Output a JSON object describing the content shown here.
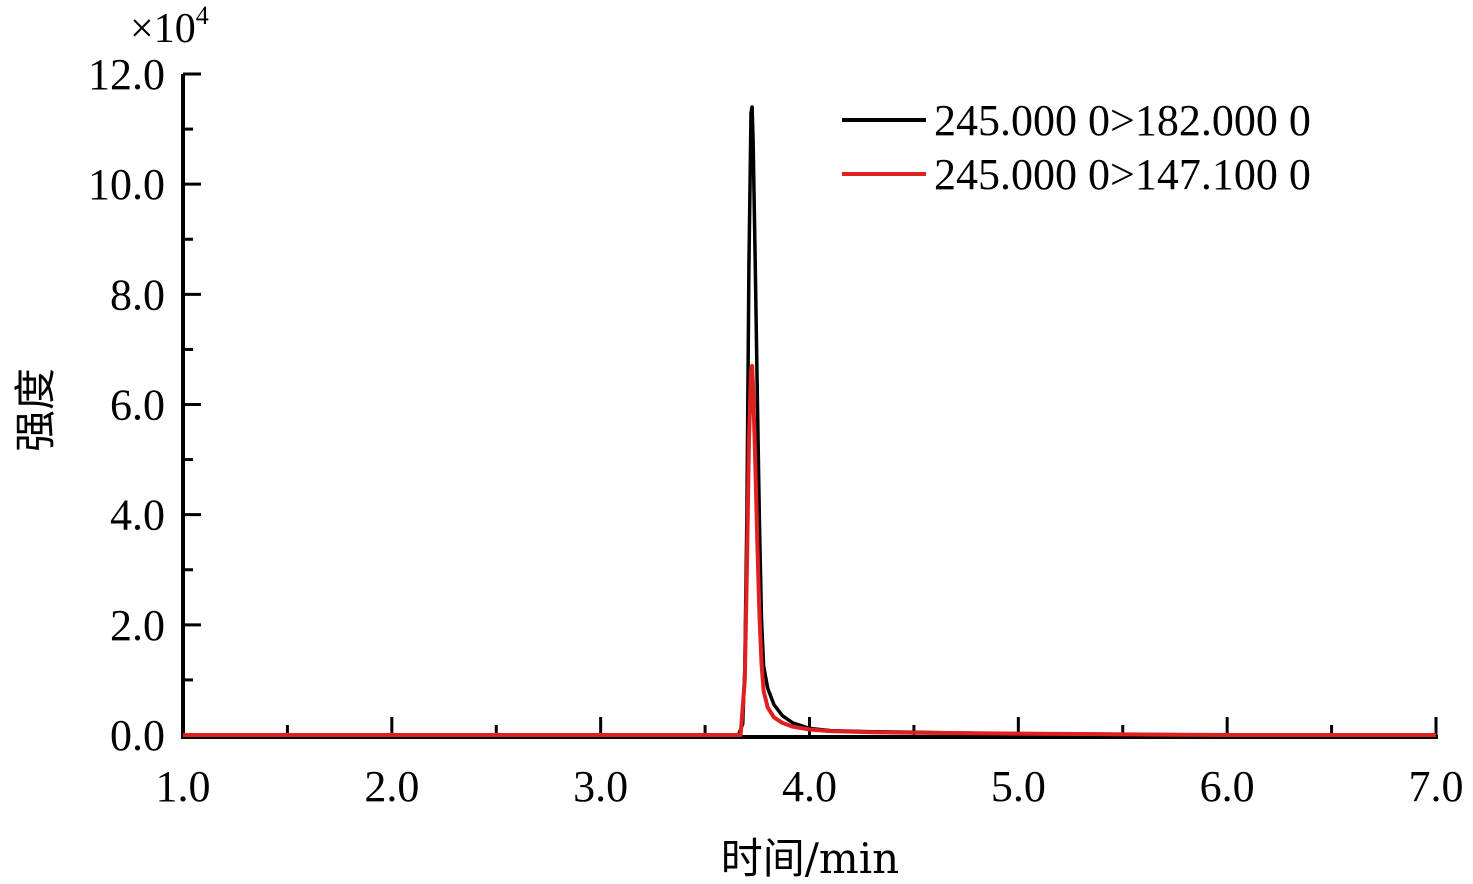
{
  "chart_data": {
    "type": "line",
    "xlabel": "时间/min",
    "ylabel": "强度",
    "y_multiplier_prefix": "×",
    "y_multiplier_base": "10",
    "y_multiplier_exp": "4",
    "xlim": [
      1.0,
      7.0
    ],
    "ylim": [
      0.0,
      12.0
    ],
    "x_ticks": [
      1.0,
      2.0,
      3.0,
      4.0,
      5.0,
      6.0,
      7.0
    ],
    "x_tick_labels": [
      "1.0",
      "2.0",
      "3.0",
      "4.0",
      "5.0",
      "6.0",
      "7.0"
    ],
    "x_minor_ticks": [
      1.5,
      2.5,
      3.5,
      4.5,
      5.5,
      6.5
    ],
    "y_ticks": [
      0.0,
      2.0,
      4.0,
      6.0,
      8.0,
      10.0,
      12.0
    ],
    "y_tick_labels": [
      "0.0",
      "2.0",
      "4.0",
      "6.0",
      "8.0",
      "10.0",
      "12.0"
    ],
    "y_minor_ticks": [
      1.0,
      3.0,
      5.0,
      7.0,
      9.0,
      11.0
    ],
    "grid": false,
    "legend_position": "top-right",
    "series": [
      {
        "name": "245.000 0>182.000 0",
        "color": "#000000",
        "x": [
          1.0,
          3.5,
          3.66,
          3.68,
          3.69,
          3.7,
          3.71,
          3.72,
          3.725,
          3.73,
          3.74,
          3.75,
          3.76,
          3.77,
          3.78,
          3.8,
          3.83,
          3.87,
          3.92,
          4.0,
          4.1,
          4.3,
          4.5,
          4.8,
          5.2,
          6.0,
          7.0
        ],
        "y": [
          0.0,
          0.0,
          0.0,
          0.2,
          1.2,
          4.0,
          8.5,
          11.3,
          11.4,
          10.8,
          8.6,
          6.2,
          3.9,
          2.1,
          1.25,
          0.85,
          0.55,
          0.35,
          0.22,
          0.12,
          0.08,
          0.06,
          0.05,
          0.03,
          0.02,
          0.0,
          0.0
        ]
      },
      {
        "name": "245.000 0>147.100 0",
        "color": "#e02020",
        "x": [
          1.0,
          3.5,
          3.67,
          3.69,
          3.7,
          3.71,
          3.72,
          3.725,
          3.73,
          3.74,
          3.75,
          3.76,
          3.77,
          3.78,
          3.8,
          3.83,
          3.87,
          3.92,
          4.0,
          4.1,
          4.3,
          4.5,
          4.8,
          5.2,
          6.0,
          7.0
        ],
        "y": [
          0.0,
          0.0,
          0.0,
          1.0,
          3.0,
          5.3,
          6.6,
          6.7,
          6.3,
          5.0,
          3.5,
          2.2,
          1.3,
          0.8,
          0.5,
          0.32,
          0.22,
          0.15,
          0.1,
          0.07,
          0.05,
          0.04,
          0.03,
          0.02,
          0.0,
          0.0
        ]
      }
    ]
  }
}
